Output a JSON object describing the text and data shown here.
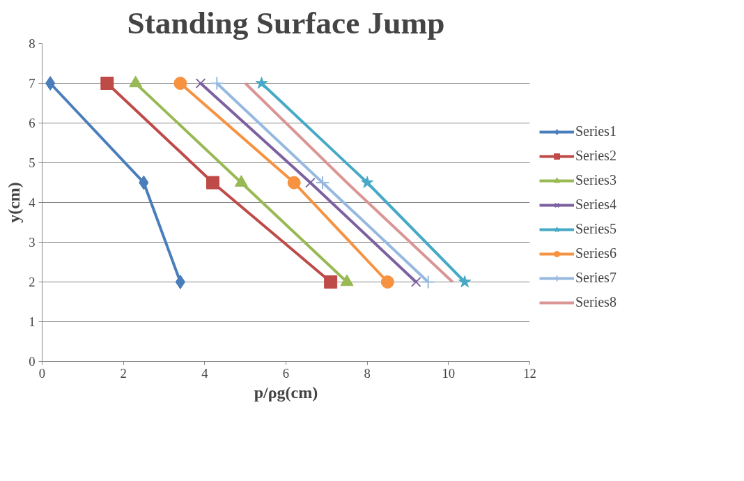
{
  "chart_data": {
    "type": "line",
    "title": "Standing Surface Jump",
    "xlabel": "p/ρg(cm)",
    "ylabel": "y(cm)",
    "xlim": [
      0,
      12
    ],
    "xticks": [
      0,
      2,
      4,
      6,
      8,
      10,
      12
    ],
    "ylim": [
      0,
      8
    ],
    "yticks": [
      0,
      1,
      2,
      3,
      4,
      5,
      6,
      7,
      8
    ],
    "grid": "y",
    "legend": "right",
    "line_style": "solid",
    "series": [
      {
        "name": "Series1",
        "color": "#4a7ebb",
        "marker": "diamond",
        "x": [
          0.2,
          2.5,
          3.4
        ],
        "values": [
          7,
          4.5,
          2
        ]
      },
      {
        "name": "Series2",
        "color": "#be4b48",
        "marker": "square",
        "x": [
          1.6,
          4.2,
          7.1
        ],
        "values": [
          7,
          4.5,
          2
        ]
      },
      {
        "name": "Series3",
        "color": "#98b954",
        "marker": "triangle",
        "x": [
          2.3,
          4.9,
          7.5
        ],
        "values": [
          7,
          4.5,
          2
        ]
      },
      {
        "name": "Series4",
        "color": "#7d60a0",
        "marker": "x",
        "x": [
          3.9,
          6.6,
          9.2
        ],
        "values": [
          7,
          4.5,
          2
        ]
      },
      {
        "name": "Series5",
        "color": "#46aac5",
        "marker": "star",
        "x": [
          5.4,
          8.0,
          10.4
        ],
        "values": [
          7,
          4.5,
          2
        ]
      },
      {
        "name": "Series6",
        "color": "#f69240",
        "marker": "circle",
        "x": [
          3.4,
          6.2,
          8.5
        ],
        "values": [
          7,
          4.5,
          2
        ]
      },
      {
        "name": "Series7",
        "color": "#97b9e0",
        "marker": "cross",
        "x": [
          4.3,
          6.9,
          9.5
        ],
        "values": [
          7,
          4.5,
          2
        ]
      },
      {
        "name": "Series8",
        "color": "#d99694",
        "marker": "none",
        "x": [
          5.0,
          7.5,
          10.1
        ],
        "values": [
          7,
          4.5,
          2
        ]
      }
    ]
  }
}
